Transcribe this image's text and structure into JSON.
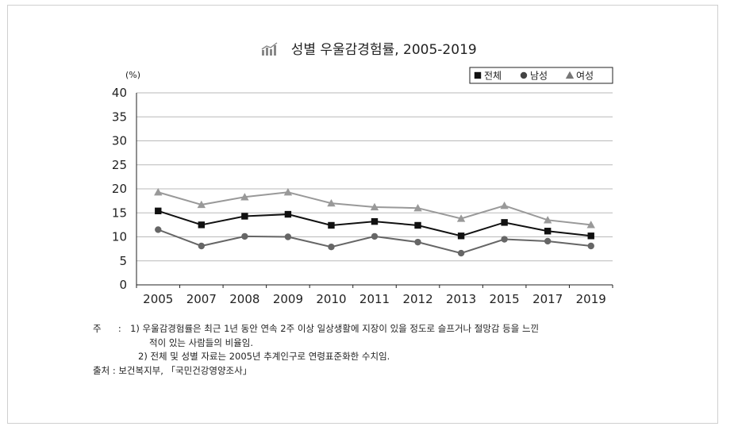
{
  "chart_data": {
    "type": "line",
    "title": "성별 우울감경험률, 2005-2019",
    "title_icon": "bar-chart-icon",
    "ylabel": "(%)",
    "xlabel": "",
    "ylim": [
      0,
      40
    ],
    "yticks": [
      "0",
      "5",
      "10",
      "15",
      "20",
      "25",
      "30",
      "35",
      "40"
    ],
    "grid": true,
    "legend_position": "top-right",
    "categories": [
      "2005",
      "2007",
      "2008",
      "2009",
      "2010",
      "2011",
      "2012",
      "2013",
      "2015",
      "2017",
      "2019"
    ],
    "series": [
      {
        "name": "전체",
        "marker": "square",
        "color": "#111111",
        "values": [
          15.4,
          12.5,
          14.3,
          14.7,
          12.4,
          13.2,
          12.4,
          10.2,
          13.0,
          11.2,
          10.2
        ]
      },
      {
        "name": "남성",
        "marker": "circle",
        "color": "#666666",
        "values": [
          11.5,
          8.1,
          10.1,
          10.0,
          7.9,
          10.1,
          8.9,
          6.6,
          9.5,
          9.1,
          8.1
        ]
      },
      {
        "name": "여성",
        "marker": "triangle",
        "color": "#999999",
        "values": [
          19.3,
          16.7,
          18.3,
          19.3,
          17.0,
          16.2,
          16.0,
          13.8,
          16.5,
          13.5,
          12.5
        ]
      }
    ]
  },
  "notes": {
    "label_note": "주",
    "sep": ":",
    "note1_line1": "1) 우울감경험률은 최근 1년 동안 연속 2주 이상 일상생활에 지장이 있을 정도로 슬프거나 절망감 등을 느낀",
    "note1_line2": "적이 있는 사람들의 비율임.",
    "note2": "2) 전체 및 성별 자료는 2005년 추계인구로 연령표준화한 수치임.",
    "source": "출처 : 보건복지부, 「국민건강영양조사」"
  }
}
